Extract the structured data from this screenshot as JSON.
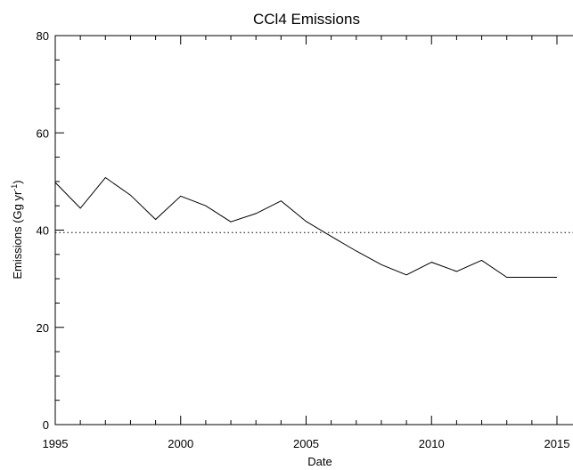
{
  "chart_data": {
    "type": "line",
    "title": "CCl4 Emissions",
    "xlabel": "Date",
    "ylabel": "Emissions (Gg yr",
    "ylabel_superscript": "-1",
    "ylabel_close": ")",
    "xlim": [
      1995,
      2015
    ],
    "ylim": [
      0,
      80
    ],
    "xticks": [
      1995,
      2000,
      2005,
      2010,
      2015
    ],
    "yticks": [
      0,
      20,
      40,
      60,
      80
    ],
    "xtick_labels": [
      "1995",
      "2000",
      "2005",
      "2010",
      "2015"
    ],
    "ytick_labels": [
      "0",
      "20",
      "40",
      "60",
      "80"
    ],
    "x_minor_step": 1,
    "y_minor_step": 5,
    "grid": false,
    "series": [
      {
        "style": "solid",
        "color": "#000000",
        "x": [
          1995,
          1996,
          1997,
          1998,
          1999,
          2000,
          2001,
          2002,
          2003,
          2004,
          2005,
          2006,
          2007,
          2008,
          2009,
          2010,
          2011,
          2012,
          2013,
          2014,
          2015
        ],
        "y": [
          49.8,
          44.5,
          50.8,
          47.2,
          42.2,
          47.0,
          45.0,
          41.7,
          43.4,
          46.0,
          41.8,
          38.7,
          35.7,
          32.9,
          30.8,
          33.4,
          31.5,
          33.8,
          30.3,
          30.3,
          30.3
        ]
      }
    ],
    "reference_line": {
      "y": 39.5,
      "style": "dotted",
      "color": "#000000"
    }
  }
}
